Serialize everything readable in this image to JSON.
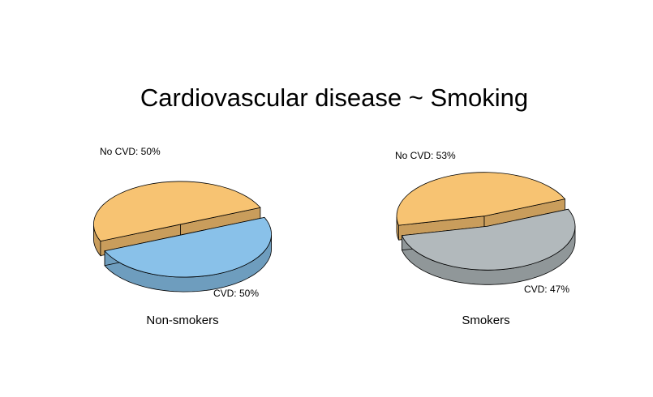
{
  "chart_data": {
    "type": "pie",
    "style": "3d-exploded",
    "title": "Cardiovascular disease ~ Smoking",
    "pies": [
      {
        "name": "Non-smokers",
        "slices": [
          {
            "label": "No CVD: 50%",
            "category": "No CVD",
            "percent": 50,
            "color": "#89C1E9",
            "side_color": "#6E9DBE"
          },
          {
            "label": "CVD: 50%",
            "category": "CVD",
            "percent": 50,
            "color": "#F7C372",
            "side_color": "#C99D5C"
          }
        ]
      },
      {
        "name": "Smokers",
        "slices": [
          {
            "label": "No CVD: 53%",
            "category": "No CVD",
            "percent": 53,
            "color": "#B2B9BC",
            "side_color": "#909799"
          },
          {
            "label": "CVD: 47%",
            "category": "CVD",
            "percent": 47,
            "color": "#F7C372",
            "side_color": "#C99D5C"
          }
        ]
      }
    ]
  }
}
